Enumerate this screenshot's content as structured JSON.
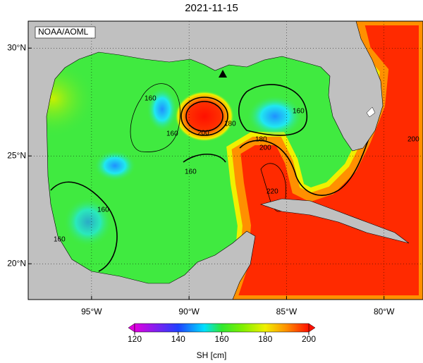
{
  "title": "2021-11-15",
  "credit": "NOAA/AOML",
  "lon_range": [
    -98.25,
    -78
  ],
  "lat_range": [
    18.34,
    31.25
  ],
  "lat_ticks": [
    {
      "value": 30,
      "label": "30°N"
    },
    {
      "value": 25,
      "label": "25°N"
    },
    {
      "value": 20,
      "label": "20°N"
    }
  ],
  "lon_ticks": [
    {
      "value": -95,
      "label": "95°W"
    },
    {
      "value": -90,
      "label": "90°W"
    },
    {
      "value": -85,
      "label": "85°W"
    },
    {
      "value": -80,
      "label": "80°W"
    }
  ],
  "colorbar": {
    "label": "SH [cm]",
    "range": [
      120,
      200
    ],
    "ticks": [
      120,
      140,
      160,
      180,
      200
    ]
  },
  "contour_labels": [
    "160",
    "160",
    "200",
    "180",
    "180",
    "200",
    "160",
    "160",
    "220",
    "160",
    "160",
    "200"
  ]
}
